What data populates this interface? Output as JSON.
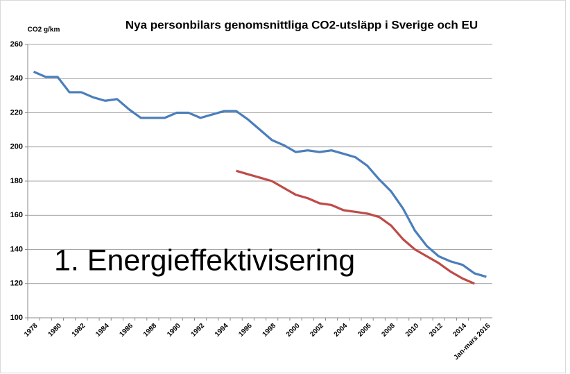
{
  "chart_data": {
    "type": "line",
    "title": "Nya personbilars genomsnittliga CO2-utsläpp i Sverige och EU",
    "y_label": "CO2 g/km",
    "annotation": "1. Energieffektivisering",
    "categories": [
      "1978",
      null,
      "1980",
      null,
      "1982",
      null,
      "1984",
      null,
      "1986",
      null,
      "1988",
      null,
      "1990",
      null,
      "1992",
      null,
      "1994",
      null,
      "1996",
      null,
      "1998",
      null,
      "2000",
      null,
      "2002",
      null,
      "2004",
      null,
      "2006",
      null,
      "2008",
      null,
      "2010",
      null,
      "2012",
      null,
      "2014",
      null,
      "Jan-mars 2016"
    ],
    "series": [
      {
        "color": "#4a7ebb",
        "values": [
          244,
          241,
          241,
          232,
          232,
          229,
          227,
          228,
          222,
          217,
          217,
          217,
          220,
          220,
          217,
          219,
          221,
          221,
          216,
          210,
          204,
          201,
          197,
          198,
          197,
          198,
          196,
          194,
          189,
          181,
          174,
          164,
          151,
          142,
          136,
          133,
          131,
          126,
          124
        ]
      },
      {
        "color": "#be4b48",
        "values": [
          null,
          null,
          null,
          null,
          null,
          null,
          null,
          null,
          null,
          null,
          null,
          null,
          null,
          null,
          null,
          null,
          null,
          186,
          184,
          182,
          180,
          176,
          172,
          170,
          167,
          166,
          163,
          162,
          161,
          159,
          154,
          146,
          140,
          136,
          132,
          127,
          123,
          120,
          null
        ]
      }
    ],
    "ylim": [
      100,
      260
    ],
    "yticks": [
      100,
      120,
      140,
      160,
      180,
      200,
      220,
      240,
      260
    ],
    "grid": true
  }
}
